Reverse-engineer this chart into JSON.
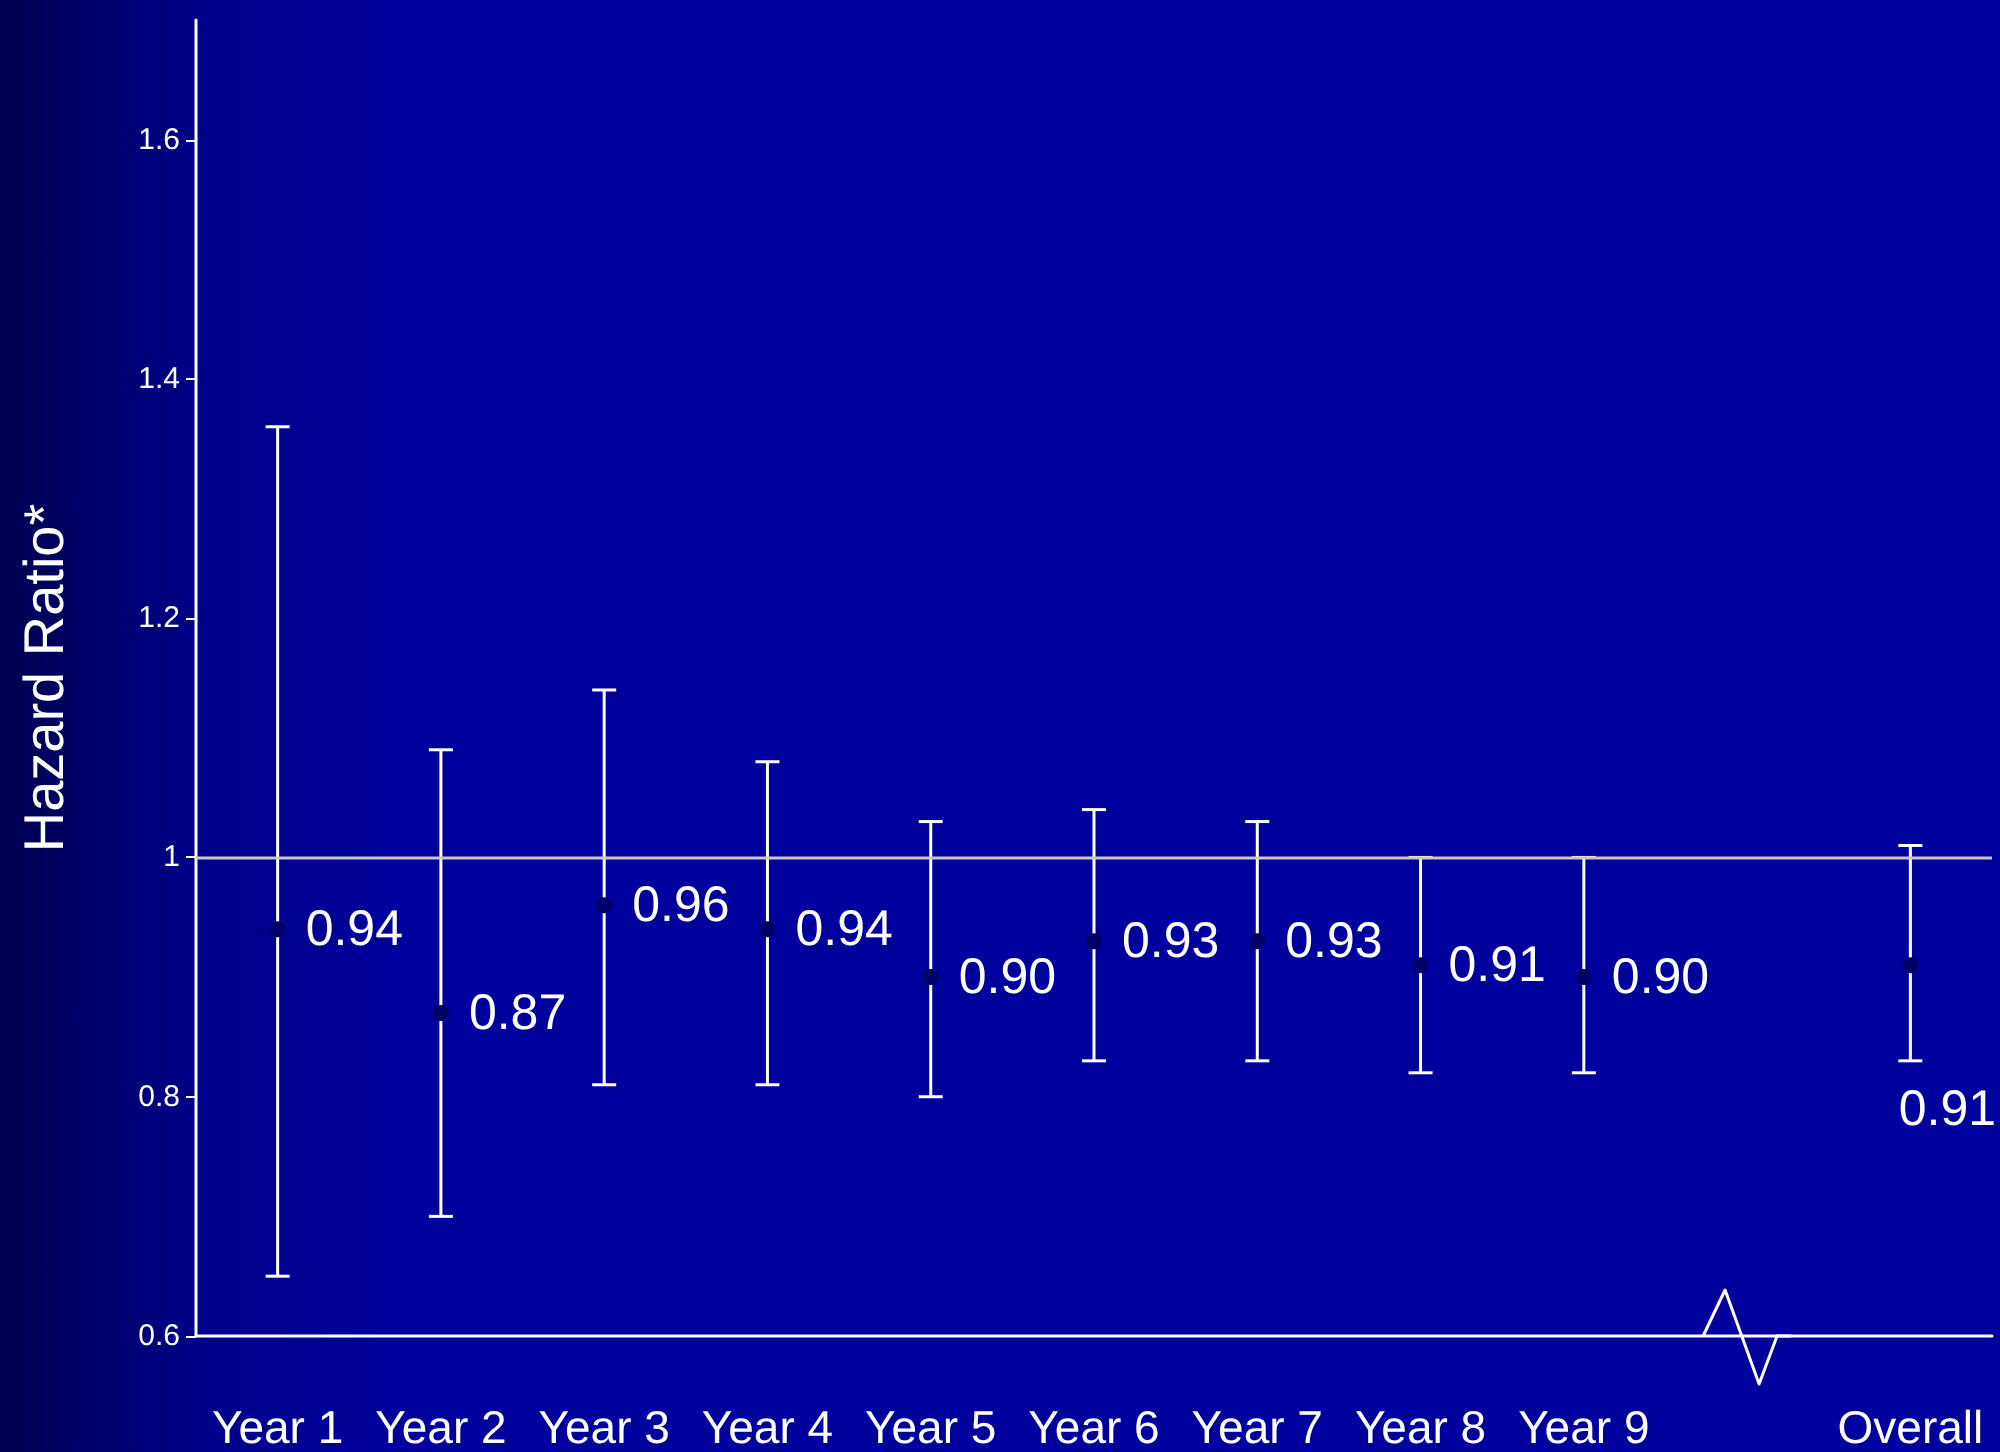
{
  "chart_data": {
    "type": "scatter",
    "ylabel": "Hazard Ratio*",
    "categories": [
      "Year 1",
      "Year 2",
      "Year 3",
      "Year 4",
      "Year 5",
      "Year 6",
      "Year 7",
      "Year 8",
      "Year 9",
      null,
      "Overall"
    ],
    "values": [
      0.94,
      0.87,
      0.96,
      0.94,
      0.9,
      0.93,
      0.93,
      0.91,
      0.9,
      null,
      0.91
    ],
    "errors": [
      [
        0.65,
        1.36
      ],
      [
        0.7,
        1.09
      ],
      [
        0.81,
        1.14
      ],
      [
        0.81,
        1.08
      ],
      [
        0.8,
        1.03
      ],
      [
        0.83,
        1.04
      ],
      [
        0.83,
        1.03
      ],
      [
        0.82,
        1.0
      ],
      [
        0.82,
        1.0
      ],
      null,
      [
        0.83,
        1.01
      ]
    ],
    "value_labels": [
      "0.94",
      "0.87",
      "0.96",
      "0.94",
      "0.90",
      "0.93",
      "0.93",
      "0.91",
      "0.90",
      null,
      "0.91"
    ],
    "color": "#000066",
    "marker": "circle",
    "ylim": [
      0.6,
      1.7
    ],
    "yticks": [
      0.6,
      0.8,
      1,
      1.2,
      1.4,
      1.6
    ],
    "ref_lines": [
      {
        "axis": "y",
        "value": 1,
        "color": "#c8c8c8"
      }
    ],
    "grid": false
  }
}
